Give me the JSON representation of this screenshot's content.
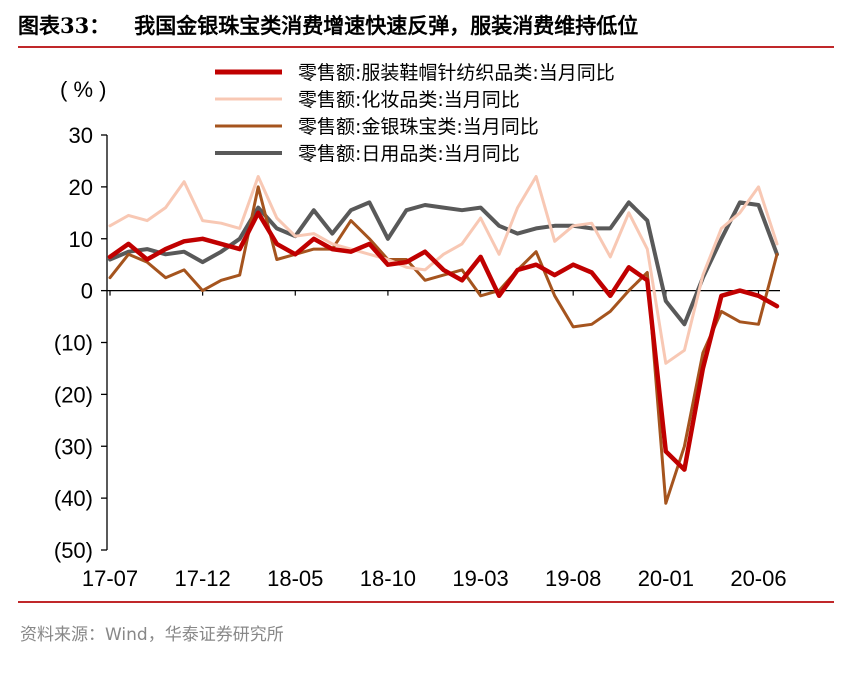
{
  "title": {
    "number": "图表33：",
    "text": "我国金银珠宝类消费增速快速反弹，服装消费维持低位"
  },
  "source": "资料来源：Wind，华泰证券研究所",
  "chart_data": {
    "type": "line",
    "unit_label": "( % )",
    "ylim": [
      -50,
      30
    ],
    "yticks": [
      30,
      20,
      10,
      0,
      -10,
      -20,
      -30,
      -40,
      -50
    ],
    "ytick_labels": [
      "30",
      "20",
      "10",
      "0",
      "(10)",
      "(20)",
      "(30)",
      "(40)",
      "(50)"
    ],
    "x": [
      "17-07",
      "17-08",
      "17-09",
      "17-10",
      "17-11",
      "17-12",
      "18-01",
      "18-02",
      "18-03",
      "18-04",
      "18-05",
      "18-06",
      "18-07",
      "18-08",
      "18-09",
      "18-10",
      "18-11",
      "18-12",
      "19-01",
      "19-02",
      "19-03",
      "19-04",
      "19-05",
      "19-06",
      "19-07",
      "19-08",
      "19-09",
      "19-10",
      "19-11",
      "19-12",
      "20-01",
      "20-02",
      "20-03",
      "20-04",
      "20-05",
      "20-06",
      "20-07"
    ],
    "xtick_labels": [
      "17-07",
      "17-12",
      "18-05",
      "18-10",
      "19-03",
      "19-08",
      "20-01",
      "20-06"
    ],
    "grid": false,
    "legend_position": "top",
    "series": [
      {
        "name": "零售额:服装鞋帽针纺织品类:当月同比",
        "color": "#c00000",
        "width": 4.5,
        "values": [
          6.5,
          9,
          6,
          8,
          9.5,
          10,
          9,
          8,
          15,
          9,
          7,
          10,
          8,
          7.5,
          9,
          5,
          5.5,
          7.5,
          4,
          2,
          6.5,
          -1,
          4,
          5,
          3,
          5,
          3.5,
          -1,
          4.5,
          2,
          -31,
          -34.5,
          -15,
          -1,
          0,
          -1,
          -3
        ]
      },
      {
        "name": "零售额:化妆品类:当月同比",
        "color": "#f8c8b4",
        "width": 3,
        "values": [
          12.5,
          14.5,
          13.5,
          16,
          21,
          13.5,
          13,
          12,
          22,
          14,
          10.5,
          11,
          9,
          8,
          7,
          6,
          4.5,
          4,
          7,
          9,
          14,
          7,
          16,
          22,
          9.5,
          12.5,
          13,
          6.5,
          15,
          8,
          -14,
          -11.5,
          3,
          12,
          15,
          20,
          9
        ]
      },
      {
        "name": "零售额:金银珠宝类:当月同比",
        "color": "#a5541e",
        "width": 3,
        "values": [
          2.5,
          7,
          5.5,
          2.5,
          4,
          0,
          2,
          3,
          20,
          6,
          7,
          8,
          8,
          13.5,
          10,
          6,
          6,
          2,
          3,
          4,
          -1,
          0,
          4,
          7.5,
          -1,
          -7,
          -6.5,
          -4,
          0,
          3.5,
          -41,
          -30,
          -12,
          -4,
          -6,
          -6.5,
          7
        ]
      },
      {
        "name": "零售额:日用品类:当月同比",
        "color": "#595959",
        "width": 4,
        "values": [
          6,
          7.5,
          8,
          7,
          7.5,
          5.5,
          7.5,
          10,
          16,
          12,
          10.5,
          15.5,
          11,
          15.5,
          17,
          10,
          15.5,
          16.5,
          16,
          15.5,
          16,
          12.5,
          11,
          12,
          12.5,
          12.5,
          12,
          12,
          17,
          13.5,
          -2,
          -6.5,
          2.5,
          10,
          17,
          16.5,
          7
        ]
      }
    ]
  }
}
